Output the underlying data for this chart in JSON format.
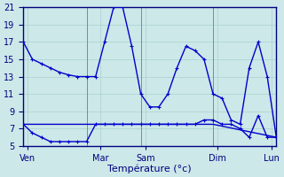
{
  "background_color": "#cce8e8",
  "grid_color": "#b0d4d4",
  "line_color": "#0000cc",
  "xlabel": "Température (°c)",
  "ylim": [
    5,
    21
  ],
  "xlim": [
    0,
    28
  ],
  "yticks": [
    5,
    7,
    9,
    11,
    13,
    15,
    17,
    19,
    21
  ],
  "day_labels": [
    "Ven",
    "Mar",
    "Sam",
    "Dim",
    "Lun"
  ],
  "day_positions": [
    0.5,
    8.5,
    13.5,
    21.5,
    27.5
  ],
  "vline_positions": [
    0,
    7,
    13,
    21,
    28
  ],
  "series1_x": [
    0,
    1,
    2,
    3,
    4,
    5,
    6,
    7,
    8,
    9,
    10,
    11,
    12,
    13,
    14,
    15,
    16,
    17,
    18,
    19,
    20,
    21,
    22,
    23,
    24,
    25,
    26,
    27,
    28
  ],
  "series1_y": [
    17,
    15,
    14.5,
    14,
    13.5,
    13.2,
    13,
    13,
    13,
    17,
    21,
    21,
    16.5,
    11,
    9.5,
    9.5,
    11,
    14,
    16.5,
    16,
    15,
    11,
    10.5,
    8,
    7.5,
    14,
    17,
    13,
    6
  ],
  "series2_x": [
    0,
    1,
    2,
    3,
    4,
    5,
    6,
    7,
    8,
    9,
    10,
    11,
    12,
    13,
    14,
    15,
    16,
    17,
    18,
    19,
    20,
    21,
    22,
    23,
    24,
    25,
    26,
    27,
    28
  ],
  "series2_y": [
    7.5,
    6.5,
    6,
    5.5,
    5.5,
    5.5,
    5.5,
    5.5,
    7.5,
    7.5,
    7.5,
    7.5,
    7.5,
    7.5,
    7.5,
    7.5,
    7.5,
    7.5,
    7.5,
    7.5,
    8,
    8,
    7.5,
    7.5,
    7,
    6,
    8.5,
    6,
    6
  ],
  "series3_x": [
    0,
    8,
    13,
    21,
    28
  ],
  "series3_y": [
    7.5,
    7.5,
    7.5,
    7.5,
    6
  ],
  "marker_size": 2.5,
  "line_width": 1.0,
  "tick_fontsize": 7,
  "label_fontsize": 8
}
